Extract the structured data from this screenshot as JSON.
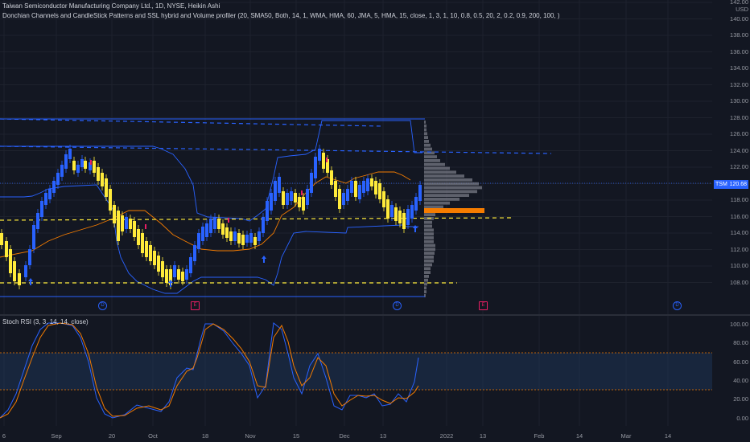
{
  "header": {
    "title": "Taiwan Semiconductor Manufacturing Company Ltd., 1D, NYSE, Heikin Ashi",
    "indicator": "Donchian Channels and CandleStick Patterns and SSL hybrid and Volume profiler (20, SMA50, Both, 14, 1, WMA, HMA, 60, JMA, 5, HMA, 15, close, 1, 3, 1, 10, 0.8, 0.5, 20, 2, 0.2, 0.9, 200, 100, )"
  },
  "price_axis": {
    "currency": "USD",
    "ticks": [
      "142.00",
      "140.00",
      "138.00",
      "136.00",
      "134.00",
      "132.00",
      "130.00",
      "128.00",
      "126.00",
      "124.00",
      "122.00",
      "120.00",
      "118.00",
      "116.00",
      "114.00",
      "112.00",
      "110.00",
      "108.00"
    ],
    "current_price": "120.68",
    "current_symbol": "TSM"
  },
  "rsi_panel": {
    "label": "Stoch RSI (3, 3, 14, 14, close)",
    "ticks": [
      "100.00",
      "80.00",
      "60.00",
      "40.00",
      "20.00",
      "0.00"
    ]
  },
  "time_axis": {
    "labels": [
      "6",
      "Sep",
      "20",
      "Oct",
      "18",
      "Nov",
      "15",
      "Dec",
      "13",
      "2022",
      "13",
      "Feb",
      "14",
      "Mar",
      "14"
    ]
  },
  "event_badges": {
    "dividend": "D",
    "earnings": "E"
  },
  "colors": {
    "bull": "#2962ff",
    "bear": "#ffeb3b",
    "channel": "#2962ff",
    "rsi_k": "#2962ff",
    "rsi_d": "#f57c00",
    "poc": "#f57c00"
  }
}
